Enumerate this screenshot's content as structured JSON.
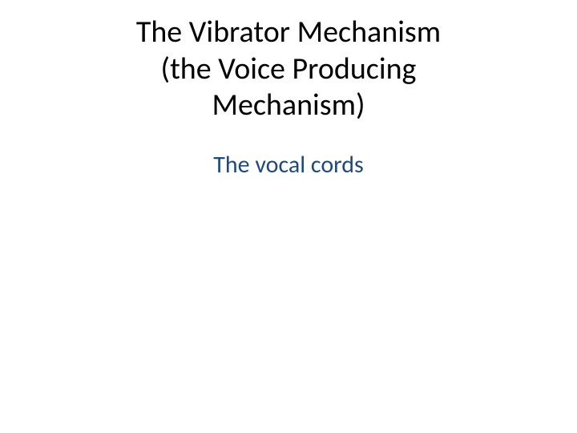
{
  "slide": {
    "title_line1": "The Vibrator Mechanism",
    "title_line2": "(the Voice Producing",
    "title_line3": "Mechanism)",
    "subtitle": "The vocal cords",
    "title_color": "#000000",
    "title_fontsize": 38,
    "subtitle_color": "#1f497d",
    "subtitle_fontsize": 30,
    "background_color": "#ffffff"
  }
}
